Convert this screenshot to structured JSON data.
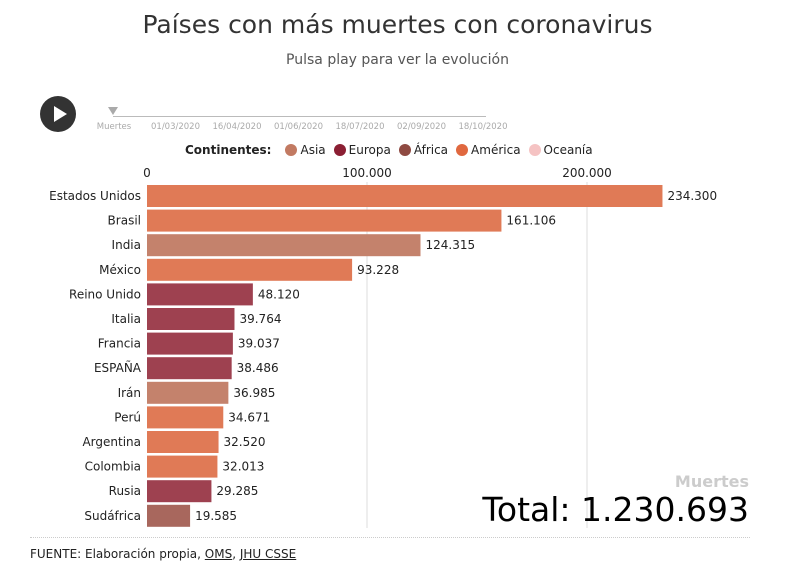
{
  "title": "Países con más muertes con coronavirus",
  "subtitle": "Pulsa play para ver la evolución",
  "timeline": {
    "labels": [
      "Muertes",
      "01/03/2020",
      "16/04/2020",
      "01/06/2020",
      "18/07/2020",
      "02/09/2020",
      "18/10/2020"
    ]
  },
  "legend": {
    "title": "Continentes:",
    "items": [
      {
        "label": "Asia",
        "color": "#c27a62"
      },
      {
        "label": "Europa",
        "color": "#8b1f33"
      },
      {
        "label": "África",
        "color": "#8f4a42"
      },
      {
        "label": "América",
        "color": "#e0683f"
      },
      {
        "label": "Oceanía",
        "color": "#f5c3c3"
      }
    ]
  },
  "chart_data": {
    "type": "bar",
    "orientation": "horizontal",
    "xlim": [
      0,
      240000
    ],
    "ticks": [
      {
        "value": 0,
        "label": "0"
      },
      {
        "value": 100000,
        "label": "100.000"
      },
      {
        "value": 200000,
        "label": "200.000"
      }
    ],
    "categories": [
      "Estados Unidos",
      "Brasil",
      "India",
      "México",
      "Reino Unido",
      "Italia",
      "Francia",
      "ESPAÑA",
      "Irán",
      "Perú",
      "Argentina",
      "Colombia",
      "Rusia",
      "Sudáfrica"
    ],
    "values": [
      234300,
      161106,
      124315,
      93228,
      48120,
      39764,
      39037,
      38486,
      36985,
      34671,
      32520,
      32013,
      29285,
      19585
    ],
    "labels": [
      "234.300",
      "161.106",
      "124.315",
      "93.228",
      "48.120",
      "39.764",
      "39.037",
      "38.486",
      "36.985",
      "34.671",
      "32.520",
      "32.013",
      "29.285",
      "19.585"
    ],
    "continents": [
      "América",
      "America",
      "Asia",
      "America",
      "Europa",
      "Europa",
      "Europa",
      "Europa",
      "Asia",
      "America",
      "America",
      "America",
      "Europa",
      "Africa"
    ],
    "bar_colors": [
      "#e07a56",
      "#e07a56",
      "#c4826c",
      "#e07a56",
      "#9e4150",
      "#9e4150",
      "#9e4150",
      "#9e4150",
      "#c4826c",
      "#e07a56",
      "#e07a56",
      "#e07a56",
      "#9e4150",
      "#a8675d"
    ]
  },
  "metric_label": "Muertes",
  "total": "Total: 1.230.693",
  "footer": {
    "prefix": "FUENTE: Elaboración propia, ",
    "links": [
      "OMS",
      "JHU CSSE"
    ],
    "sep": ", "
  }
}
